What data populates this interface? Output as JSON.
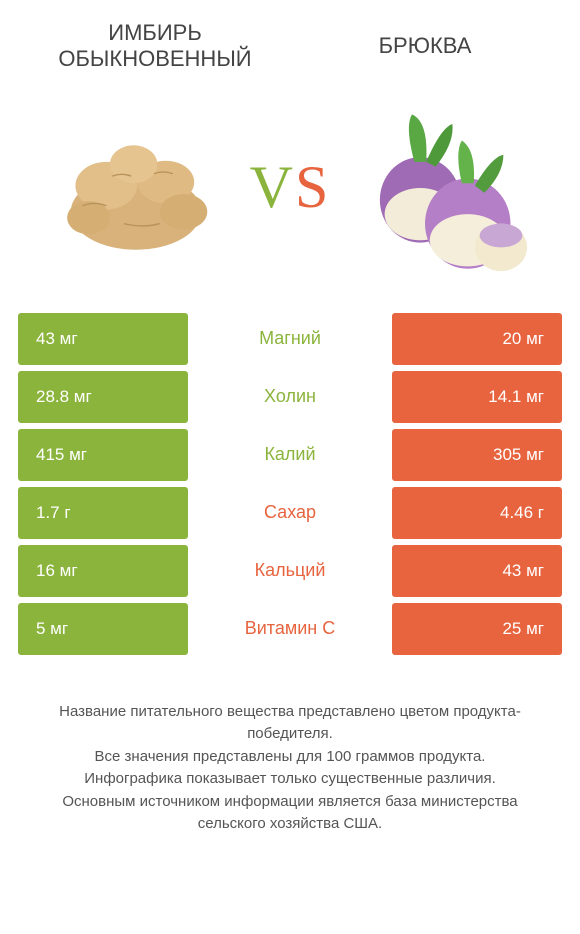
{
  "colors": {
    "left": "#8bb43c",
    "right": "#e7643f",
    "text": "#444444",
    "bg": "#ffffff"
  },
  "fonts": {
    "header_size": 22,
    "vs_size": 60,
    "cell_value_size": 17,
    "cell_label_size": 18,
    "footer_size": 15
  },
  "header": {
    "left": "Имбирь обыкновенный",
    "right": "Брюква"
  },
  "vs": {
    "v": "V",
    "s": "S"
  },
  "comparison": {
    "type": "table",
    "rows": [
      {
        "label": "Магний",
        "left": "43 мг",
        "right": "20 мг",
        "winner": "left"
      },
      {
        "label": "Холин",
        "left": "28.8 мг",
        "right": "14.1 мг",
        "winner": "left"
      },
      {
        "label": "Калий",
        "left": "415 мг",
        "right": "305 мг",
        "winner": "left"
      },
      {
        "label": "Сахар",
        "left": "1.7 г",
        "right": "4.46 г",
        "winner": "right"
      },
      {
        "label": "Кальций",
        "left": "16 мг",
        "right": "43 мг",
        "winner": "right"
      },
      {
        "label": "Витамин C",
        "left": "5 мг",
        "right": "25 мг",
        "winner": "right"
      }
    ]
  },
  "footer": {
    "lines": [
      "Название питательного вещества представлено цветом продукта-победителя.",
      "Все значения представлены для 100 граммов продукта.",
      "Инфографика показывает только существенные различия.",
      "Основным источником информации является база министерства сельского хозяйства США."
    ]
  }
}
